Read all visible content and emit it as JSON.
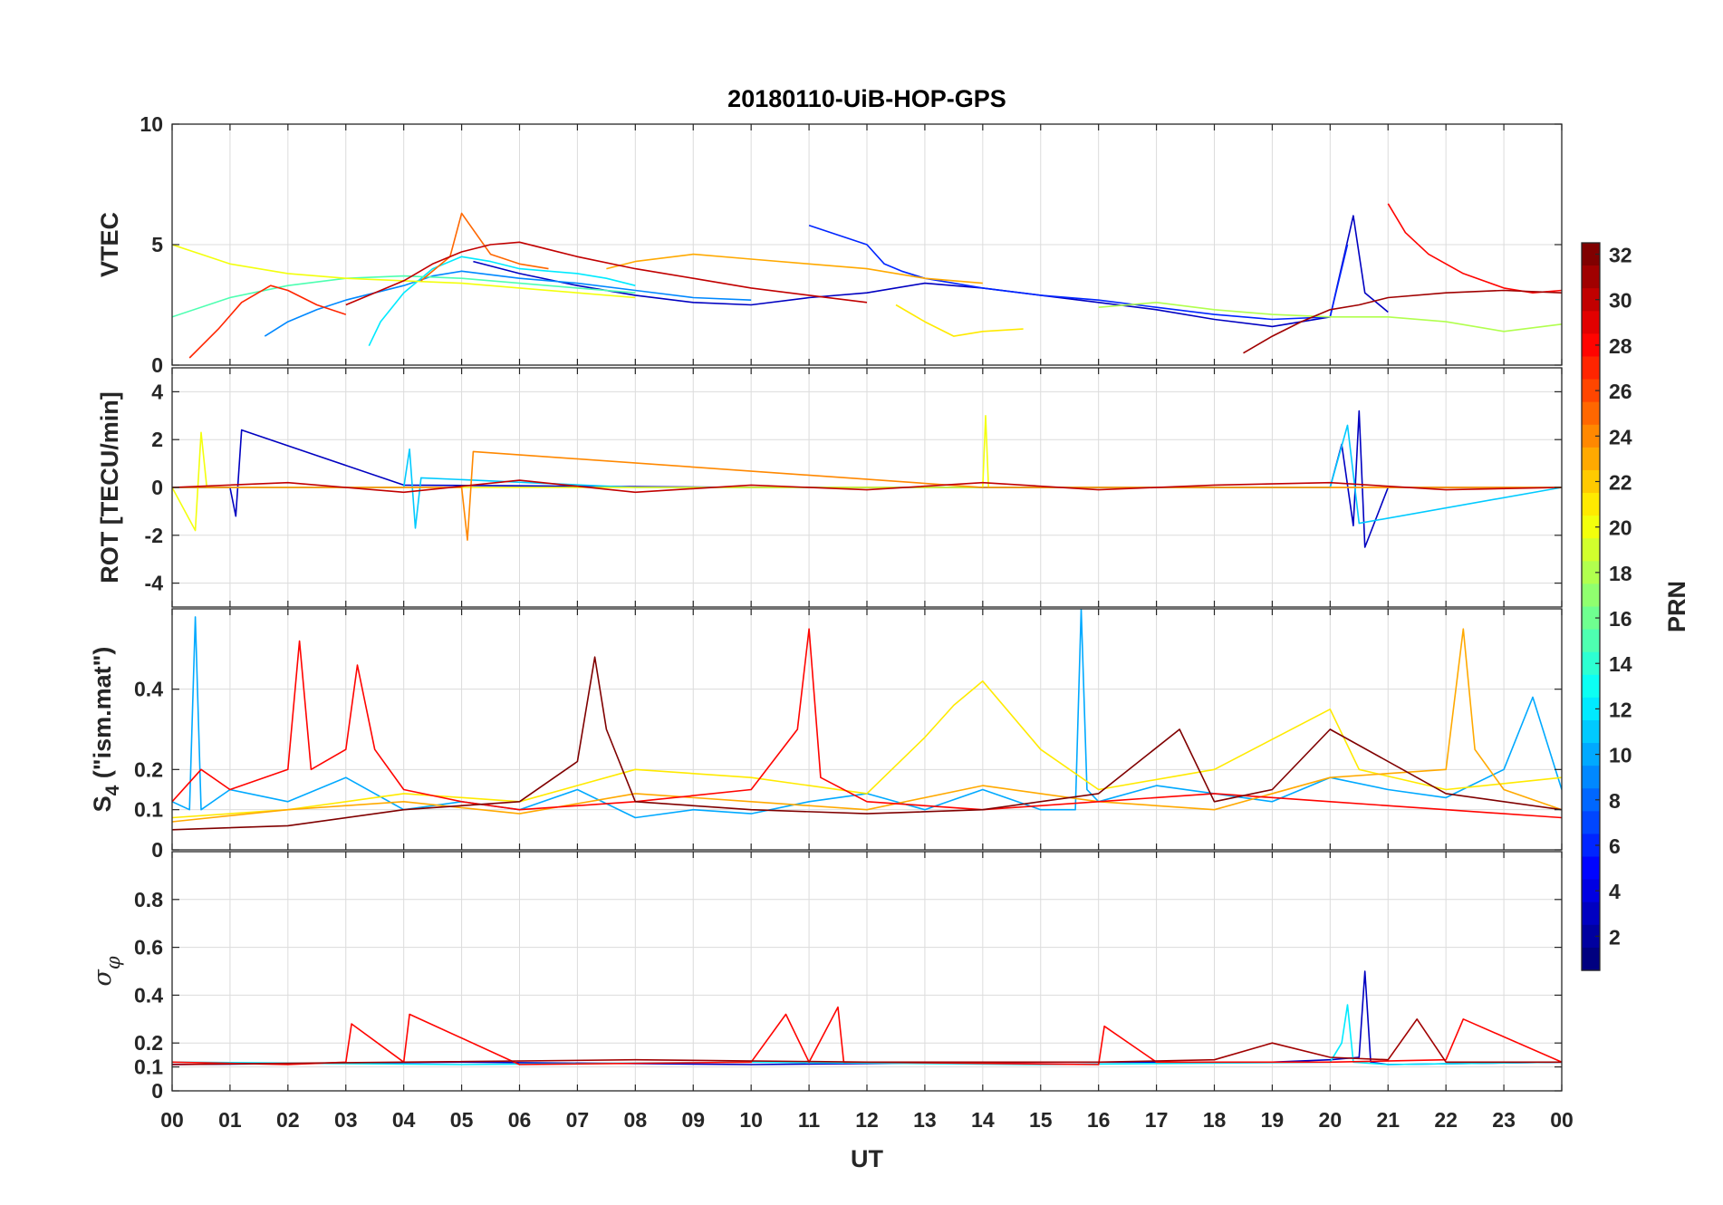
{
  "title": "20180110-UiB-HOP-GPS",
  "xlabel": "UT",
  "colorbar": {
    "label": "PRN",
    "min": 1,
    "max": 32,
    "ticks": [
      "2",
      "4",
      "6",
      "8",
      "10",
      "12",
      "14",
      "16",
      "18",
      "20",
      "22",
      "24",
      "26",
      "28",
      "30",
      "32"
    ],
    "colormap": "jet"
  },
  "chart_data": [
    {
      "type": "line",
      "panel": "vtec",
      "ylabel": "VTEC",
      "ylim": [
        0,
        10
      ],
      "yticks": [
        "0",
        "5",
        "10"
      ],
      "xlim": [
        0,
        24
      ],
      "xticks": [
        "00",
        "01",
        "02",
        "03",
        "04",
        "05",
        "06",
        "07",
        "08",
        "09",
        "10",
        "11",
        "12",
        "13",
        "14",
        "15",
        "16",
        "17",
        "18",
        "19",
        "20",
        "21",
        "22",
        "23",
        "00"
      ],
      "series": [
        {
          "prn": 3,
          "x": [
            5.2,
            6,
            7,
            8,
            9,
            10,
            11,
            12,
            13,
            14,
            15,
            16,
            17,
            18,
            19,
            20,
            20.4,
            20.6,
            21
          ],
          "y": [
            4.3,
            3.8,
            3.3,
            2.9,
            2.6,
            2.5,
            2.8,
            3.0,
            3.4,
            3.2,
            2.9,
            2.6,
            2.3,
            1.9,
            1.6,
            2.0,
            6.2,
            3.0,
            2.2
          ]
        },
        {
          "prn": 6,
          "x": [
            11,
            11.5,
            12,
            12.3,
            12.6,
            13,
            14,
            15,
            16,
            17,
            18,
            19,
            20,
            20.3
          ],
          "y": [
            5.8,
            5.4,
            5.0,
            4.2,
            3.9,
            3.6,
            3.2,
            2.9,
            2.7,
            2.4,
            2.1,
            1.9,
            2.0,
            5.0
          ]
        },
        {
          "prn": 9,
          "x": [
            1.6,
            2,
            2.5,
            3,
            3.5,
            4,
            4.5,
            5,
            6,
            7,
            8,
            9,
            10
          ],
          "y": [
            1.2,
            1.8,
            2.3,
            2.7,
            3.0,
            3.3,
            3.7,
            3.9,
            3.6,
            3.4,
            3.1,
            2.8,
            2.7
          ]
        },
        {
          "prn": 12,
          "x": [
            3.4,
            3.6,
            4,
            4.5,
            5,
            5.5,
            6,
            7,
            7.5,
            8
          ],
          "y": [
            0.8,
            1.8,
            3.0,
            4.0,
            4.5,
            4.3,
            4.0,
            3.8,
            3.6,
            3.3
          ]
        },
        {
          "prn": 15,
          "x": [
            0,
            1,
            2,
            3,
            4,
            5,
            6,
            7,
            8
          ],
          "y": [
            2.0,
            2.8,
            3.3,
            3.6,
            3.7,
            3.6,
            3.4,
            3.2,
            3.0
          ]
        },
        {
          "prn": 18,
          "x": [
            16,
            17,
            18,
            19,
            20,
            21,
            22,
            23,
            24
          ],
          "y": [
            2.4,
            2.6,
            2.3,
            2.1,
            2.0,
            2.0,
            1.8,
            1.4,
            1.7
          ]
        },
        {
          "prn": 20,
          "x": [
            0,
            0.5,
            1,
            2,
            3,
            4,
            5,
            6,
            7,
            8
          ],
          "y": [
            5.0,
            4.6,
            4.2,
            3.8,
            3.6,
            3.5,
            3.4,
            3.2,
            3.0,
            2.8
          ]
        },
        {
          "prn": 21,
          "x": [
            12.5,
            13,
            13.5,
            14,
            14.7
          ],
          "y": [
            2.5,
            1.8,
            1.2,
            1.4,
            1.5
          ]
        },
        {
          "prn": 23,
          "x": [
            7.5,
            8,
            9,
            10,
            11,
            12,
            13,
            14
          ],
          "y": [
            4.0,
            4.3,
            4.6,
            4.4,
            4.2,
            4.0,
            3.6,
            3.4
          ]
        },
        {
          "prn": 25,
          "x": [
            4.3,
            4.8,
            5,
            5.5,
            6,
            6.5
          ],
          "y": [
            3.5,
            4.5,
            6.3,
            4.6,
            4.2,
            4.0
          ]
        },
        {
          "prn": 27,
          "x": [
            0.3,
            0.8,
            1.2,
            1.7,
            2,
            2.5,
            3
          ],
          "y": [
            0.3,
            1.5,
            2.6,
            3.3,
            3.1,
            2.5,
            2.1
          ]
        },
        {
          "prn": 28,
          "x": [
            21,
            21.3,
            21.7,
            22.3,
            23,
            23.5,
            24
          ],
          "y": [
            6.7,
            5.5,
            4.6,
            3.8,
            3.2,
            3.0,
            3.1
          ]
        },
        {
          "prn": 30,
          "x": [
            3,
            3.5,
            4,
            4.5,
            5,
            5.5,
            6,
            6.5,
            7,
            8,
            9,
            10,
            11,
            12
          ],
          "y": [
            2.5,
            3.0,
            3.5,
            4.2,
            4.7,
            5.0,
            5.1,
            4.8,
            4.5,
            4.0,
            3.6,
            3.2,
            2.9,
            2.6
          ]
        },
        {
          "prn": 31,
          "x": [
            18.5,
            19,
            19.5,
            20,
            20.5,
            21,
            22,
            23,
            24
          ],
          "y": [
            0.5,
            1.2,
            1.8,
            2.3,
            2.5,
            2.8,
            3.0,
            3.1,
            3.0
          ]
        }
      ]
    },
    {
      "type": "line",
      "panel": "rot",
      "ylabel": "ROT [TECU/min]",
      "ylim": [
        -5,
        5
      ],
      "yticks": [
        "-4",
        "-2",
        "0",
        "2",
        "4"
      ],
      "xlim": [
        0,
        24
      ],
      "xticks": [
        "00",
        "01",
        "02",
        "03",
        "04",
        "05",
        "06",
        "07",
        "08",
        "09",
        "10",
        "11",
        "12",
        "13",
        "14",
        "15",
        "16",
        "17",
        "18",
        "19",
        "20",
        "21",
        "22",
        "23",
        "00"
      ],
      "series": [
        {
          "prn": 3,
          "x": [
            0,
            1,
            1.1,
            1.2,
            4,
            10,
            20,
            20.2,
            20.4,
            20.5,
            20.6,
            21,
            24
          ],
          "y": [
            0,
            0,
            -1.2,
            2.4,
            0.1,
            0,
            0,
            1.8,
            -1.6,
            3.2,
            -2.5,
            0,
            0
          ]
        },
        {
          "prn": 11,
          "x": [
            0,
            4,
            4.1,
            4.2,
            4.3,
            8,
            20,
            20.3,
            20.5,
            24
          ],
          "y": [
            0,
            0,
            1.6,
            -1.7,
            0.4,
            0,
            0,
            2.6,
            -1.5,
            0
          ]
        },
        {
          "prn": 20,
          "x": [
            0,
            0.4,
            0.5,
            0.6,
            12,
            14,
            14.05,
            14.1,
            24
          ],
          "y": [
            0,
            -1.8,
            2.3,
            0,
            0,
            0,
            3.0,
            0,
            0
          ]
        },
        {
          "prn": 24,
          "x": [
            0,
            5,
            5.1,
            5.2,
            14,
            24
          ],
          "y": [
            0,
            0,
            -2.2,
            1.5,
            0,
            0
          ]
        },
        {
          "prn": 30,
          "x": [
            0,
            2,
            4,
            6,
            8,
            10,
            12,
            14,
            16,
            18,
            20,
            22,
            24
          ],
          "y": [
            0,
            0.2,
            -0.2,
            0.3,
            -0.2,
            0.1,
            -0.1,
            0.2,
            -0.1,
            0.1,
            0.2,
            -0.1,
            0
          ]
        }
      ]
    },
    {
      "type": "line",
      "panel": "s4",
      "ylabel": "S4 (\"ism.mat\")",
      "ylim": [
        0,
        0.6
      ],
      "yticks": [
        "0",
        "0.1",
        "0.2",
        "0.4"
      ],
      "xlim": [
        0,
        24
      ],
      "xticks": [
        "00",
        "01",
        "02",
        "03",
        "04",
        "05",
        "06",
        "07",
        "08",
        "09",
        "10",
        "11",
        "12",
        "13",
        "14",
        "15",
        "16",
        "17",
        "18",
        "19",
        "20",
        "21",
        "22",
        "23",
        "00"
      ],
      "series": [
        {
          "prn": 10,
          "x": [
            0,
            0.3,
            0.4,
            0.5,
            1,
            2,
            3,
            4,
            5,
            6,
            7,
            8,
            9,
            10,
            11,
            12,
            13,
            14,
            15,
            15.6,
            15.7,
            15.8,
            16,
            17,
            18,
            19,
            20,
            21,
            22,
            23,
            23.5,
            24
          ],
          "y": [
            0.12,
            0.1,
            0.58,
            0.1,
            0.15,
            0.12,
            0.18,
            0.1,
            0.12,
            0.1,
            0.15,
            0.08,
            0.1,
            0.09,
            0.12,
            0.14,
            0.1,
            0.15,
            0.1,
            0.1,
            0.6,
            0.15,
            0.12,
            0.16,
            0.14,
            0.12,
            0.18,
            0.15,
            0.13,
            0.2,
            0.38,
            0.15
          ]
        },
        {
          "prn": 21,
          "x": [
            0,
            2,
            4,
            6,
            8,
            10,
            12,
            13,
            13.5,
            14,
            15,
            16,
            18,
            20,
            20.5,
            22,
            24
          ],
          "y": [
            0.08,
            0.1,
            0.14,
            0.12,
            0.2,
            0.18,
            0.14,
            0.28,
            0.36,
            0.42,
            0.25,
            0.15,
            0.2,
            0.35,
            0.2,
            0.15,
            0.18
          ]
        },
        {
          "prn": 23,
          "x": [
            0,
            2,
            4,
            6,
            8,
            10,
            12,
            14,
            16,
            18,
            20,
            22,
            22.3,
            22.5,
            23,
            24
          ],
          "y": [
            0.07,
            0.1,
            0.12,
            0.09,
            0.14,
            0.12,
            0.1,
            0.16,
            0.12,
            0.1,
            0.18,
            0.2,
            0.55,
            0.25,
            0.15,
            0.1
          ]
        },
        {
          "prn": 28,
          "x": [
            0,
            0.5,
            1,
            2,
            2.2,
            2.4,
            3,
            3.2,
            3.5,
            4,
            5,
            6,
            8,
            10,
            10.8,
            11,
            11.2,
            12,
            14,
            16,
            18,
            20,
            22,
            24
          ],
          "y": [
            0.12,
            0.2,
            0.15,
            0.2,
            0.52,
            0.2,
            0.25,
            0.46,
            0.25,
            0.15,
            0.12,
            0.1,
            0.12,
            0.15,
            0.3,
            0.55,
            0.18,
            0.12,
            0.1,
            0.12,
            0.14,
            0.12,
            0.1,
            0.08
          ]
        },
        {
          "prn": 32,
          "x": [
            0,
            2,
            4,
            6,
            7,
            7.3,
            7.5,
            8,
            10,
            12,
            14,
            16,
            17.4,
            18,
            19,
            20,
            22,
            24
          ],
          "y": [
            0.05,
            0.06,
            0.1,
            0.12,
            0.22,
            0.48,
            0.3,
            0.12,
            0.1,
            0.09,
            0.1,
            0.14,
            0.3,
            0.12,
            0.15,
            0.3,
            0.14,
            0.1
          ]
        }
      ]
    },
    {
      "type": "line",
      "panel": "sigma_phi",
      "ylabel": "σφ",
      "ylim": [
        0,
        1
      ],
      "yticks": [
        "0",
        "0.1",
        "0.2",
        "0.4",
        "0.6",
        "0.8"
      ],
      "xlim": [
        0,
        24
      ],
      "xticks": [
        "00",
        "01",
        "02",
        "03",
        "04",
        "05",
        "06",
        "07",
        "08",
        "09",
        "10",
        "11",
        "12",
        "13",
        "14",
        "15",
        "16",
        "17",
        "18",
        "19",
        "20",
        "21",
        "22",
        "23",
        "00"
      ],
      "series": [
        {
          "prn": 3,
          "x": [
            0,
            5,
            10,
            15,
            19,
            20,
            20.5,
            20.6,
            20.7,
            21,
            24
          ],
          "y": [
            0.11,
            0.12,
            0.11,
            0.12,
            0.12,
            0.13,
            0.14,
            0.5,
            0.12,
            0.11,
            0.12
          ]
        },
        {
          "prn": 12,
          "x": [
            0,
            5,
            10,
            15,
            20,
            20.2,
            20.3,
            20.4,
            21,
            24
          ],
          "y": [
            0.12,
            0.11,
            0.12,
            0.11,
            0.12,
            0.2,
            0.36,
            0.12,
            0.11,
            0.12
          ]
        },
        {
          "prn": 28,
          "x": [
            0,
            2,
            3,
            3.1,
            4,
            4.1,
            6,
            10,
            10.6,
            11,
            11.5,
            11.6,
            12,
            16,
            16.1,
            17,
            20,
            22,
            22.3,
            24
          ],
          "y": [
            0.12,
            0.11,
            0.12,
            0.28,
            0.12,
            0.32,
            0.11,
            0.12,
            0.32,
            0.12,
            0.35,
            0.12,
            0.12,
            0.11,
            0.27,
            0.12,
            0.12,
            0.13,
            0.3,
            0.12
          ]
        },
        {
          "prn": 31,
          "x": [
            0,
            4,
            8,
            12,
            16,
            18,
            19,
            20,
            21,
            21.5,
            22,
            24
          ],
          "y": [
            0.11,
            0.12,
            0.13,
            0.12,
            0.12,
            0.13,
            0.2,
            0.14,
            0.13,
            0.3,
            0.12,
            0.12
          ]
        }
      ]
    }
  ]
}
